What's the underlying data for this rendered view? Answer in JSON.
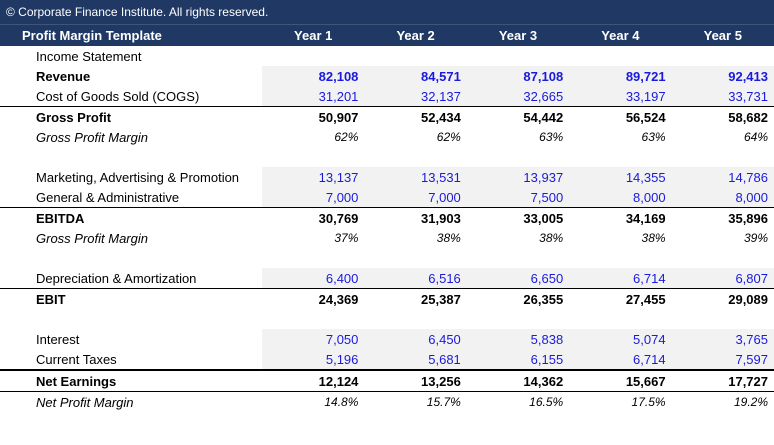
{
  "copyright": "© Corporate Finance Institute. All rights reserved.",
  "header": {
    "title": "Profit Margin Template",
    "years": [
      "Year 1",
      "Year 2",
      "Year 3",
      "Year 4",
      "Year 5"
    ]
  },
  "section_label": "Income Statement",
  "rows": {
    "revenue": {
      "label": "Revenue",
      "values": [
        "82,108",
        "84,571",
        "87,108",
        "89,721",
        "92,413"
      ]
    },
    "cogs": {
      "label": "Cost of Goods Sold (COGS)",
      "values": [
        "31,201",
        "32,137",
        "32,665",
        "33,197",
        "33,731"
      ]
    },
    "gross_profit": {
      "label": "Gross Profit",
      "values": [
        "50,907",
        "52,434",
        "54,442",
        "56,524",
        "58,682"
      ]
    },
    "gross_margin": {
      "label": "Gross Profit Margin",
      "values": [
        "62%",
        "62%",
        "63%",
        "63%",
        "64%"
      ]
    },
    "marketing": {
      "label": "Marketing, Advertising & Promotion",
      "values": [
        "13,137",
        "13,531",
        "13,937",
        "14,355",
        "14,786"
      ]
    },
    "ga": {
      "label": "General & Administrative",
      "values": [
        "7,000",
        "7,000",
        "7,500",
        "8,000",
        "8,000"
      ]
    },
    "ebitda": {
      "label": "EBITDA",
      "values": [
        "30,769",
        "31,903",
        "33,005",
        "34,169",
        "35,896"
      ]
    },
    "ebitda_margin": {
      "label": "Gross Profit Margin",
      "values": [
        "37%",
        "38%",
        "38%",
        "38%",
        "39%"
      ]
    },
    "da": {
      "label": "Depreciation & Amortization",
      "values": [
        "6,400",
        "6,516",
        "6,650",
        "6,714",
        "6,807"
      ]
    },
    "ebit": {
      "label": "EBIT",
      "values": [
        "24,369",
        "25,387",
        "26,355",
        "27,455",
        "29,089"
      ]
    },
    "interest": {
      "label": "Interest",
      "values": [
        "7,050",
        "6,450",
        "5,838",
        "5,074",
        "3,765"
      ]
    },
    "taxes": {
      "label": "Current Taxes",
      "values": [
        "5,196",
        "5,681",
        "6,155",
        "6,714",
        "7,597"
      ]
    },
    "net_earnings": {
      "label": "Net Earnings",
      "values": [
        "12,124",
        "13,256",
        "14,362",
        "15,667",
        "17,727"
      ]
    },
    "net_margin": {
      "label": "Net Profit Margin",
      "values": [
        "14.8%",
        "15.7%",
        "16.5%",
        "17.5%",
        "19.2%"
      ]
    }
  },
  "colors": {
    "header_bg": "#1f3864",
    "input_text": "#1a1adc",
    "shade": "#f2f2f2"
  }
}
